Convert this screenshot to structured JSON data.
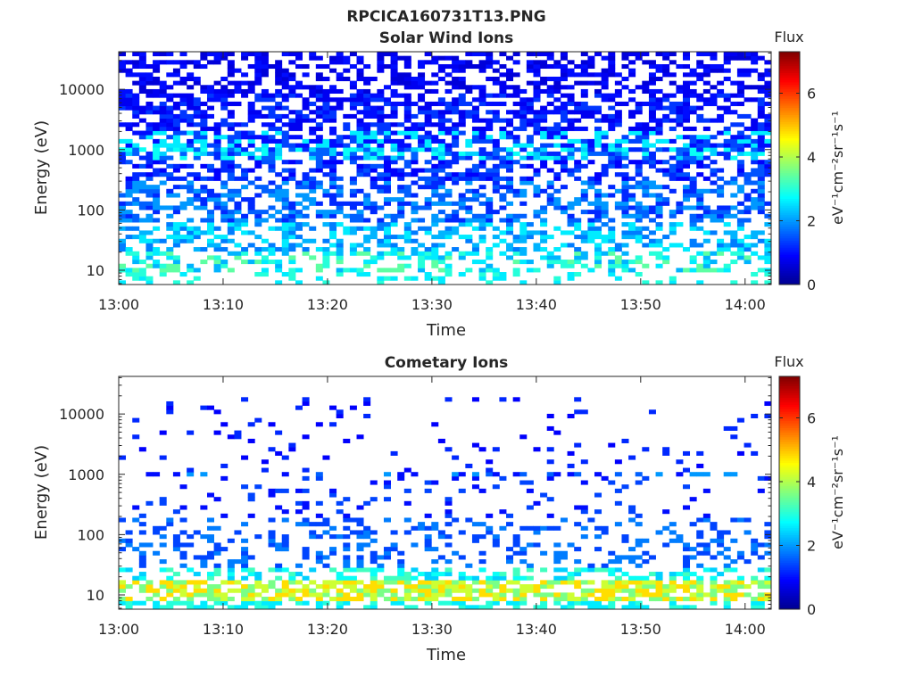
{
  "figure_title": "RPCICA160731T13.PNG",
  "colormap": [
    "#00008f",
    "#0000ff",
    "#0080ff",
    "#00ffff",
    "#80ff80",
    "#ffff00",
    "#ff8000",
    "#ff0000",
    "#800000"
  ],
  "chart_data": [
    {
      "type": "heatmap",
      "title": "Solar Wind Ions",
      "xlabel": "Time",
      "ylabel": "Energy (eV)",
      "x_ticks": [
        "13:00",
        "13:10",
        "13:20",
        "13:30",
        "13:40",
        "13:50",
        "14:00"
      ],
      "x_tick_minutes": [
        0,
        10,
        20,
        30,
        40,
        50,
        60
      ],
      "x_range_minutes": [
        0,
        62.5
      ],
      "y_scale": "log",
      "y_ticks": [
        "10",
        "100",
        "1000",
        "10000"
      ],
      "y_tick_values": [
        10,
        100,
        1000,
        10000
      ],
      "y_range": [
        5.8,
        42000
      ],
      "colorbar": {
        "title": "Flux",
        "label": "eV⁻¹cm⁻²sr⁻¹s⁻¹",
        "ticks": [
          "0",
          "2",
          "4",
          "6"
        ],
        "tick_values": [
          0,
          2,
          4,
          6
        ],
        "range": [
          0,
          7.3
        ]
      },
      "bands": [
        {
          "e_min": 6,
          "e_max": 9,
          "prob": 0.25,
          "levels": [
            2.6,
            3.0
          ]
        },
        {
          "e_min": 9,
          "e_max": 20,
          "prob": 0.45,
          "levels": [
            2.2,
            2.6,
            3.0,
            3.4
          ]
        },
        {
          "e_min": 20,
          "e_max": 60,
          "prob": 0.45,
          "levels": [
            1.8,
            2.2,
            2.6
          ]
        },
        {
          "e_min": 60,
          "e_max": 300,
          "prob": 0.5,
          "levels": [
            1.2,
            1.6,
            2.0
          ]
        },
        {
          "e_min": 300,
          "e_max": 700,
          "prob": 0.55,
          "levels": [
            0.9,
            1.2,
            1.5
          ]
        },
        {
          "e_min": 700,
          "e_max": 1100,
          "prob": 0.7,
          "levels": [
            1.2,
            1.6,
            2.4,
            2.8
          ]
        },
        {
          "e_min": 1100,
          "e_max": 2000,
          "prob": 0.6,
          "levels": [
            1.0,
            1.4,
            2.6
          ]
        },
        {
          "e_min": 2000,
          "e_max": 8000,
          "prob": 0.6,
          "levels": [
            0.8,
            1.0,
            1.3
          ]
        },
        {
          "e_min": 8000,
          "e_max": 42000,
          "prob": 0.5,
          "levels": [
            0.6,
            0.8,
            1.0
          ]
        }
      ]
    },
    {
      "type": "heatmap",
      "title": "Cometary Ions",
      "xlabel": "Time",
      "ylabel": "Energy (eV)",
      "x_ticks": [
        "13:00",
        "13:10",
        "13:20",
        "13:30",
        "13:40",
        "13:50",
        "14:00"
      ],
      "x_tick_minutes": [
        0,
        10,
        20,
        30,
        40,
        50,
        60
      ],
      "x_range_minutes": [
        0,
        62.5
      ],
      "y_scale": "log",
      "y_ticks": [
        "10",
        "100",
        "1000",
        "10000"
      ],
      "y_tick_values": [
        10,
        100,
        1000,
        10000
      ],
      "y_range": [
        5.8,
        42000
      ],
      "colorbar": {
        "title": "Flux",
        "label": "eV⁻¹cm⁻²sr⁻¹s⁻¹",
        "ticks": [
          "0",
          "2",
          "4",
          "6"
        ],
        "tick_values": [
          0,
          2,
          4,
          6
        ],
        "range": [
          0,
          7.3
        ]
      },
      "bands": [
        {
          "e_min": 6,
          "e_max": 8,
          "prob": 0.45,
          "levels": [
            2.6,
            3.0
          ]
        },
        {
          "e_min": 8,
          "e_max": 18,
          "prob": 0.7,
          "levels": [
            3.6,
            4.2,
            4.8
          ]
        },
        {
          "e_min": 18,
          "e_max": 30,
          "prob": 0.4,
          "levels": [
            2.4,
            2.8,
            3.2
          ]
        },
        {
          "e_min": 30,
          "e_max": 200,
          "prob": 0.3,
          "levels": [
            1.4,
            1.8
          ]
        },
        {
          "e_min": 200,
          "e_max": 900,
          "prob": 0.1,
          "levels": [
            1.0,
            1.4
          ]
        },
        {
          "e_min": 900,
          "e_max": 1100,
          "prob": 0.3,
          "levels": [
            1.0,
            1.6,
            2.0
          ]
        },
        {
          "e_min": 1100,
          "e_max": 20000,
          "prob": 0.06,
          "levels": [
            0.9,
            1.2
          ]
        }
      ]
    }
  ]
}
